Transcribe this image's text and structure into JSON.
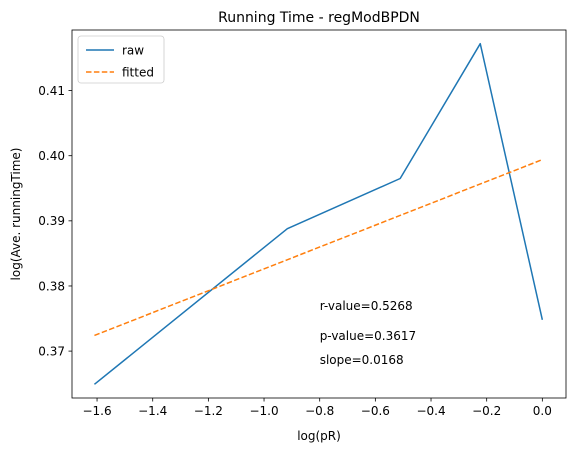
{
  "chart_data": {
    "type": "line",
    "title": "Running Time - regModBPDN",
    "xlabel": "log(pR)",
    "ylabel": "log(Ave. runningTime)",
    "xlim": [
      -1.69,
      0.085
    ],
    "ylim": [
      0.3628,
      0.4193
    ],
    "xticks": [
      -1.6,
      -1.4,
      -1.2,
      -1.0,
      -0.8,
      -0.6,
      -0.4,
      -0.2,
      0.0
    ],
    "xtick_labels": [
      "−1.6",
      "−1.4",
      "−1.2",
      "−1.0",
      "−0.8",
      "−0.6",
      "−0.4",
      "−0.2",
      "0.0"
    ],
    "yticks": [
      0.37,
      0.38,
      0.39,
      0.4,
      0.41
    ],
    "ytick_labels": [
      "0.37",
      "0.38",
      "0.39",
      "0.40",
      "0.41"
    ],
    "grid": false,
    "legend_position": "top-left",
    "series": [
      {
        "name": "raw",
        "style": "solid",
        "color": "#1f77b4",
        "x": [
          -1.6094,
          -0.9163,
          -0.5108,
          -0.2231,
          0.0
        ],
        "y": [
          0.3649,
          0.3888,
          0.3965,
          0.4172,
          0.3748
        ]
      },
      {
        "name": "fitted",
        "style": "dashed",
        "color": "#ff7f0e",
        "x": [
          -1.6094,
          0.0
        ],
        "y": [
          0.3724,
          0.3994
        ]
      }
    ],
    "annotations": [
      {
        "text": "r-value=0.5268",
        "x": -0.8,
        "y": 0.3763
      },
      {
        "text": "p-value=0.3617",
        "x": -0.8,
        "y": 0.3717
      },
      {
        "text": "slope=0.0168",
        "x": -0.8,
        "y": 0.368
      }
    ]
  }
}
